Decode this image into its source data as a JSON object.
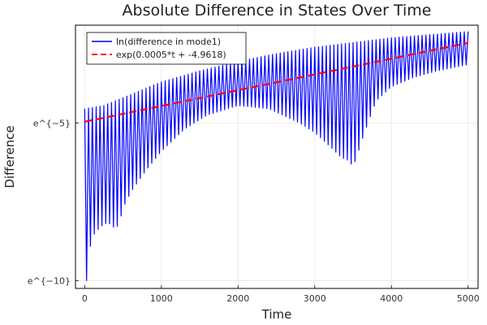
{
  "chart_data": {
    "type": "line",
    "title": "Absolute Difference in States Over Time",
    "xlabel": "Time",
    "ylabel": "Difference",
    "xlim": [
      -120,
      5130
    ],
    "ylim": [
      -10.25,
      -1.9
    ],
    "x_ticks": [
      0,
      1000,
      2000,
      3000,
      4000,
      5000
    ],
    "x_tick_labels": [
      "0",
      "1000",
      "2000",
      "3000",
      "4000",
      "5000"
    ],
    "y_ticks": [
      -5,
      -10
    ],
    "y_tick_labels": [
      "e^{−5}",
      "e^{−10}"
    ],
    "grid": true,
    "legend_position": "top-left",
    "series": [
      {
        "name": "ln(difference in mode1)",
        "color": "#0000ff",
        "style": "oscillating",
        "oscillation_period": 50,
        "upper_envelope": {
          "x": [
            0,
            250,
            500,
            1000,
            1500,
            2000,
            2500,
            3000,
            3500,
            4000,
            4500,
            5000
          ],
          "y": [
            -4.55,
            -4.45,
            -4.2,
            -3.7,
            -3.35,
            -3.05,
            -2.8,
            -2.6,
            -2.45,
            -2.3,
            -2.2,
            -2.1
          ]
        },
        "lower_envelope": {
          "x": [
            30,
            60,
            100,
            200,
            300,
            400,
            450,
            500,
            600,
            800,
            1000,
            1300,
            1600,
            2000,
            2400,
            2800,
            3000,
            3200,
            3350,
            3450,
            3500,
            3550,
            3650,
            3800,
            4000,
            4300,
            4600,
            5000
          ],
          "y": [
            -10.0,
            -9.1,
            -8.6,
            -8.3,
            -8.15,
            -8.35,
            -8.2,
            -7.7,
            -7.2,
            -6.5,
            -5.9,
            -5.2,
            -4.75,
            -4.45,
            -4.55,
            -5.0,
            -5.3,
            -5.75,
            -6.1,
            -6.2,
            -6.4,
            -6.05,
            -5.3,
            -4.3,
            -3.85,
            -3.55,
            -3.35,
            -3.15
          ]
        }
      },
      {
        "name": "exp(0.0005*t + -4.9618)",
        "color": "#ff0000",
        "style": "dashed",
        "slope": 0.0005,
        "intercept": -4.9618
      }
    ]
  }
}
